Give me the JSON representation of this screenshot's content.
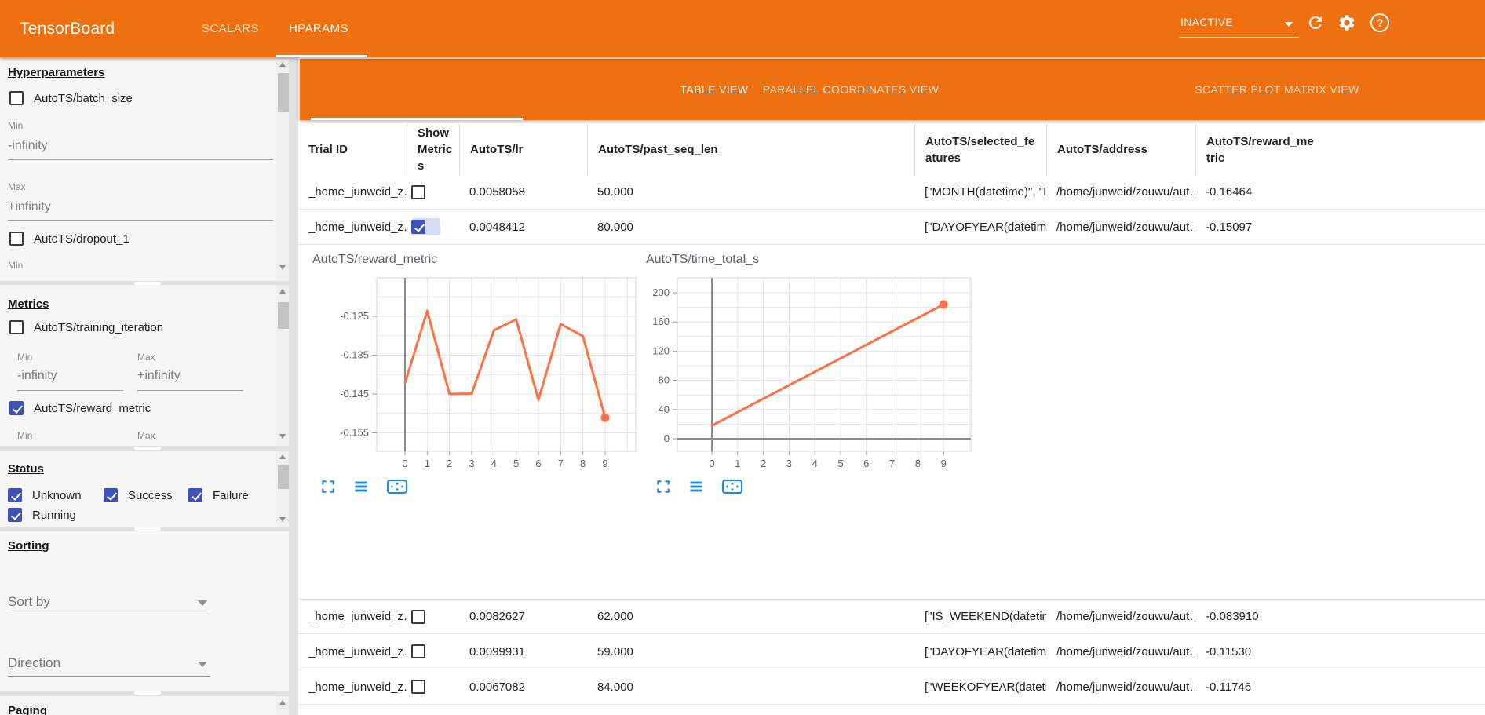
{
  "header": {
    "title": "TensorBoard",
    "tabs": {
      "scalars": "SCALARS",
      "hparams": "HPARAMS"
    },
    "run_status": "INACTIVE",
    "help_glyph": "?"
  },
  "sidebar": {
    "hyperparameters": {
      "title": "Hyperparameters",
      "item1": "AutoTS/batch_size",
      "min_label": "Min",
      "min_value": "-infinity",
      "max_label": "Max",
      "max_value": "+infinity",
      "item2": "AutoTS/dropout_1",
      "min2_label": "Min"
    },
    "metrics": {
      "title": "Metrics",
      "item1": "AutoTS/training_iteration",
      "min_label": "Min",
      "min_value": "-infinity",
      "max_label": "Max",
      "max_value": "+infinity",
      "item2": "AutoTS/reward_metric",
      "min2_label": "Min",
      "max2_label": "Max"
    },
    "status": {
      "title": "Status",
      "opt1": "Unknown",
      "opt2": "Success",
      "opt3": "Failure",
      "opt4": "Running"
    },
    "sorting": {
      "title": "Sorting",
      "sort_by_placeholder": "Sort by",
      "direction_placeholder": "Direction"
    },
    "paging": {
      "title": "Paging"
    }
  },
  "view_tabs": {
    "table": "TABLE VIEW",
    "parallel": "PARALLEL COORDINATES VIEW",
    "scatter": "SCATTER PLOT MATRIX VIEW"
  },
  "table": {
    "columns": [
      "Trial ID",
      "Show Metrics",
      "AutoTS/lr",
      "AutoTS/past_seq_len",
      "AutoTS/selected_features",
      "AutoTS/address",
      "AutoTS/reward_metric"
    ],
    "rows": [
      {
        "trial_id": "_home_junweid_z…",
        "show_metrics": false,
        "lr": "0.0058058",
        "past_seq_len": "50.000",
        "selected_features": "[\"MONTH(datetime)\", \"I…",
        "address": "/home/junweid/zouwu/aut…",
        "reward_metric": "-0.16464"
      },
      {
        "trial_id": "_home_junweid_z…",
        "show_metrics": true,
        "lr": "0.0048412",
        "past_seq_len": "80.000",
        "selected_features": "[\"DAYOFYEAR(datetime…",
        "address": "/home/junweid/zouwu/aut…",
        "reward_metric": "-0.15097"
      },
      {
        "trial_id": "_home_junweid_z…",
        "show_metrics": false,
        "lr": "0.0082627",
        "past_seq_len": "62.000",
        "selected_features": "[\"IS_WEEKEND(datetim…",
        "address": "/home/junweid/zouwu/aut…",
        "reward_metric": "-0.083910"
      },
      {
        "trial_id": "_home_junweid_z…",
        "show_metrics": false,
        "lr": "0.0099931",
        "past_seq_len": "59.000",
        "selected_features": "[\"DAYOFYEAR(datetime…",
        "address": "/home/junweid/zouwu/aut…",
        "reward_metric": "-0.11530"
      },
      {
        "trial_id": "_home_junweid_z…",
        "show_metrics": false,
        "lr": "0.0067082",
        "past_seq_len": "84.000",
        "selected_features": "[\"WEEKOFYEAR(dateti…",
        "address": "/home/junweid/zouwu/aut…",
        "reward_metric": "-0.11746"
      }
    ]
  },
  "chart_data": [
    {
      "type": "line",
      "title": "AutoTS/reward_metric",
      "x": [
        0,
        1,
        2,
        3,
        4,
        5,
        6,
        7,
        8,
        9
      ],
      "values": [
        -0.1422,
        -0.1236,
        -0.145,
        -0.1449,
        -0.1286,
        -0.1258,
        -0.1465,
        -0.127,
        -0.1301,
        -0.1511
      ],
      "xticks": [
        0,
        1,
        2,
        3,
        4,
        5,
        6,
        7,
        8,
        9
      ],
      "yticks": [
        -0.125,
        -0.135,
        -0.145,
        -0.155
      ],
      "ylim": [
        -0.16,
        -0.115
      ],
      "grid": true,
      "legend": "none",
      "line_color": "#ff7043",
      "end_dot": true
    },
    {
      "type": "line",
      "title": "AutoTS/time_total_s",
      "x": [
        0,
        9
      ],
      "values": [
        18,
        184
      ],
      "xticks": [
        0,
        1,
        2,
        3,
        4,
        5,
        6,
        7,
        8,
        9
      ],
      "yticks": [
        0,
        40,
        80,
        120,
        160,
        200
      ],
      "ylim": [
        -22,
        220
      ],
      "grid": true,
      "legend": "none",
      "line_color": "#ff7043",
      "end_dot": true
    }
  ],
  "chart_toolbar_icons": [
    "fullscreen",
    "rows",
    "fit-to-box"
  ],
  "colors": {
    "appbar_orange": "#ee7010",
    "checkbox_blue": "#3f51b5",
    "chart_line_orange": "#ff7043",
    "toolbar_icon_blue": "#1e88e5",
    "ripple_blue": "#d5dbf4"
  }
}
